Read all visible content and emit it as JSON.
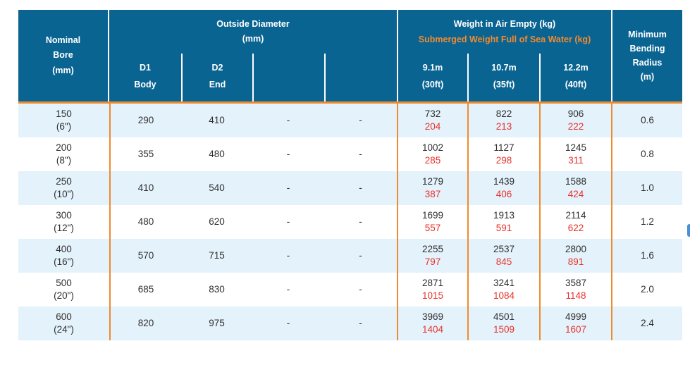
{
  "colors": {
    "header_bg": "#0a6492",
    "accent_orange": "#f08a2f",
    "row_alt_bg": "#e4f2fb",
    "row_plain_bg": "#ffffff",
    "submerged_red": "#e8322b",
    "body_text": "#2f2f2f",
    "header_text": "#ffffff",
    "edge_widget_blue": "#4a90d9"
  },
  "table": {
    "header": {
      "nominal_bore": "Nominal\nBore\n(mm)",
      "outside_diameter_title": "Outside Diameter",
      "outside_diameter_unit": "(mm)",
      "weight_air_title": "Weight in Air Empty (kg)",
      "weight_submerged_title": "Submerged Weight Full of Sea Water (kg)",
      "min_bending_radius": "Minimum\nBending\nRadius\n(m)",
      "d1_code": "D1",
      "d1_label": "Body",
      "d2_code": "D2",
      "d2_label": "End",
      "lengths": [
        {
          "meters": "9.1m",
          "feet": "(30ft)"
        },
        {
          "meters": "10.7m",
          "feet": "(35ft)"
        },
        {
          "meters": "12.2m",
          "feet": "(40ft)"
        }
      ]
    },
    "rows": [
      {
        "bore_mm": "150",
        "bore_in": "(6\")",
        "d1": "290",
        "d2": "410",
        "c4": "-",
        "c5": "-",
        "weights": [
          {
            "air": "732",
            "sub": "204"
          },
          {
            "air": "822",
            "sub": "213"
          },
          {
            "air": "906",
            "sub": "222"
          }
        ],
        "radius": "0.6"
      },
      {
        "bore_mm": "200",
        "bore_in": "(8\")",
        "d1": "355",
        "d2": "480",
        "c4": "-",
        "c5": "-",
        "weights": [
          {
            "air": "1002",
            "sub": "285"
          },
          {
            "air": "1127",
            "sub": "298"
          },
          {
            "air": "1245",
            "sub": "311"
          }
        ],
        "radius": "0.8"
      },
      {
        "bore_mm": "250",
        "bore_in": "(10\")",
        "d1": "410",
        "d2": "540",
        "c4": "-",
        "c5": "-",
        "weights": [
          {
            "air": "1279",
            "sub": "387"
          },
          {
            "air": "1439",
            "sub": "406"
          },
          {
            "air": "1588",
            "sub": "424"
          }
        ],
        "radius": "1.0"
      },
      {
        "bore_mm": "300",
        "bore_in": "(12\")",
        "d1": "480",
        "d2": "620",
        "c4": "-",
        "c5": "-",
        "weights": [
          {
            "air": "1699",
            "sub": "557"
          },
          {
            "air": "1913",
            "sub": "591"
          },
          {
            "air": "2114",
            "sub": "622"
          }
        ],
        "radius": "1.2"
      },
      {
        "bore_mm": "400",
        "bore_in": "(16\")",
        "d1": "570",
        "d2": "715",
        "c4": "-",
        "c5": "-",
        "weights": [
          {
            "air": "2255",
            "sub": "797"
          },
          {
            "air": "2537",
            "sub": "845"
          },
          {
            "air": "2800",
            "sub": "891"
          }
        ],
        "radius": "1.6"
      },
      {
        "bore_mm": "500",
        "bore_in": "(20\")",
        "d1": "685",
        "d2": "830",
        "c4": "-",
        "c5": "-",
        "weights": [
          {
            "air": "2871",
            "sub": "1015"
          },
          {
            "air": "3241",
            "sub": "1084"
          },
          {
            "air": "3587",
            "sub": "1148"
          }
        ],
        "radius": "2.0"
      },
      {
        "bore_mm": "600",
        "bore_in": "(24\")",
        "d1": "820",
        "d2": "975",
        "c4": "-",
        "c5": "-",
        "weights": [
          {
            "air": "3969",
            "sub": "1404"
          },
          {
            "air": "4501",
            "sub": "1509"
          },
          {
            "air": "4999",
            "sub": "1607"
          }
        ],
        "radius": "2.4"
      }
    ]
  }
}
